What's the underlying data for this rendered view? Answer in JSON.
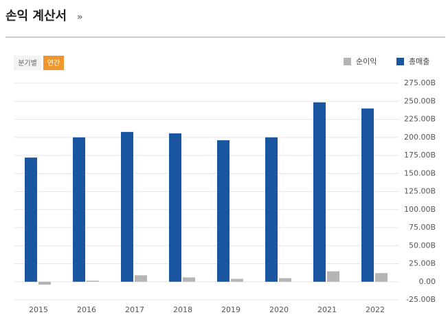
{
  "header": {
    "title": "손익 계산서",
    "more": "»"
  },
  "controls": [
    "분기별",
    "연간"
  ],
  "chart_data": {
    "type": "bar",
    "categories": [
      "2015",
      "2016",
      "2017",
      "2018",
      "2019",
      "2020",
      "2021",
      "2022"
    ],
    "series": [
      {
        "name": "순이익",
        "color": "#b5b5b5",
        "values": [
          -4,
          1.5,
          9,
          6,
          4,
          5,
          14.5,
          12
        ]
      },
      {
        "name": "총매출",
        "color": "#1a56a0",
        "values": [
          172,
          200,
          207.5,
          205.5,
          196,
          200,
          248.5,
          240
        ]
      }
    ],
    "ylim": [
      -25,
      275
    ],
    "yticks": [
      {
        "value": 275,
        "label": "275.00B"
      },
      {
        "value": 250,
        "label": "250.00B"
      },
      {
        "value": 225,
        "label": "225.00B"
      },
      {
        "value": 200,
        "label": "200.00B"
      },
      {
        "value": 175,
        "label": "175.00B"
      },
      {
        "value": 150,
        "label": "150.00B"
      },
      {
        "value": 125,
        "label": "125.00B"
      },
      {
        "value": 100,
        "label": "100.00B"
      },
      {
        "value": 75,
        "label": "75.00B"
      },
      {
        "value": 50,
        "label": "50.00B"
      },
      {
        "value": 25,
        "label": "25.00B"
      },
      {
        "value": 0,
        "label": "0.00"
      },
      {
        "value": -25,
        "label": "-25.00B"
      }
    ],
    "grid": true,
    "legend": "top-right"
  }
}
